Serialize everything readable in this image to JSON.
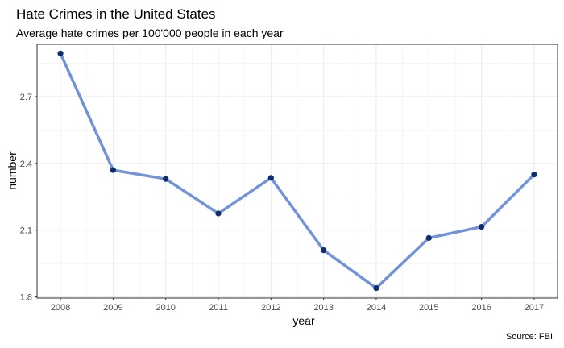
{
  "chart_data": {
    "type": "line",
    "title": "Hate Crimes in the United States",
    "subtitle": "Average hate crimes per 100'000 people in each year",
    "xlabel": "year",
    "ylabel": "number",
    "caption": "Source: FBI",
    "x": [
      2008,
      2009,
      2010,
      2011,
      2012,
      2013,
      2014,
      2015,
      2016,
      2017
    ],
    "values": [
      2.894,
      2.37,
      2.33,
      2.175,
      2.335,
      2.01,
      1.84,
      2.065,
      2.115,
      2.35
    ],
    "ylim": [
      1.795,
      2.935
    ],
    "yticks": [
      1.8,
      2.1,
      2.4,
      2.7
    ],
    "ytick_labels": [
      "1.8",
      "2.1",
      "2.4",
      "2.7"
    ],
    "xtick_labels": [
      "2008",
      "2009",
      "2010",
      "2011",
      "2012",
      "2013",
      "2014",
      "2015",
      "2016",
      "2017"
    ],
    "grid": true,
    "legend": "none",
    "line_color": "#7393d8",
    "point_color": "#0b2f6e"
  }
}
